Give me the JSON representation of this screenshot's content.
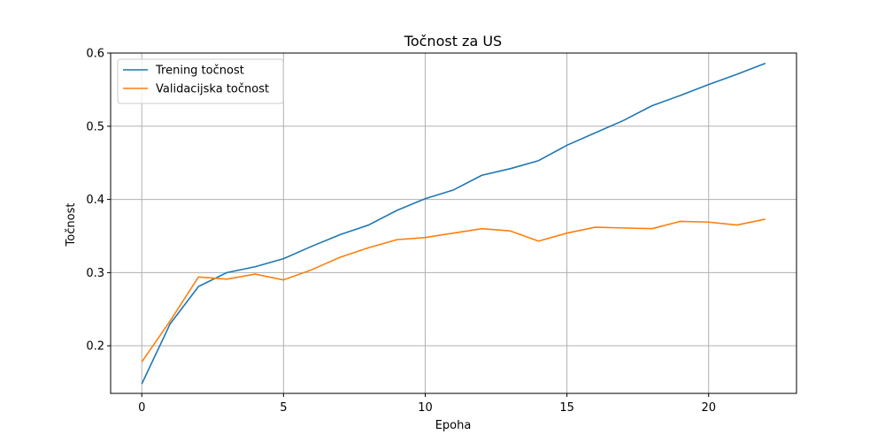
{
  "chart_data": {
    "type": "line",
    "title": "Točnost za US",
    "xlabel": "Epoha",
    "ylabel": "Točnost",
    "xlim": [
      -1.1,
      23.1
    ],
    "ylim": [
      0.135,
      0.6
    ],
    "xticks": [
      0,
      5,
      10,
      15,
      20
    ],
    "yticks": [
      0.2,
      0.3,
      0.4,
      0.5,
      0.6
    ],
    "xtick_labels": [
      "0",
      "5",
      "10",
      "15",
      "20"
    ],
    "ytick_labels": [
      "0.2",
      "0.3",
      "0.4",
      "0.5",
      "0.6"
    ],
    "grid": true,
    "legend_position": "top-left",
    "x": [
      0,
      1,
      2,
      3,
      4,
      5,
      6,
      7,
      8,
      9,
      10,
      11,
      12,
      13,
      14,
      15,
      16,
      17,
      18,
      19,
      20,
      21,
      22
    ],
    "series": [
      {
        "name": "Trening točnost",
        "color": "#1f77b4",
        "values": [
          0.148,
          0.23,
          0.281,
          0.3,
          0.308,
          0.319,
          0.336,
          0.352,
          0.365,
          0.385,
          0.401,
          0.413,
          0.433,
          0.442,
          0.453,
          0.474,
          0.491,
          0.508,
          0.528,
          0.542,
          0.557,
          0.571,
          0.586
        ]
      },
      {
        "name": "Validacijska točnost",
        "color": "#ff7f0e",
        "values": [
          0.178,
          0.234,
          0.294,
          0.291,
          0.298,
          0.29,
          0.304,
          0.321,
          0.334,
          0.345,
          0.348,
          0.354,
          0.36,
          0.357,
          0.343,
          0.354,
          0.362,
          0.361,
          0.36,
          0.37,
          0.369,
          0.365,
          0.373
        ]
      }
    ]
  }
}
